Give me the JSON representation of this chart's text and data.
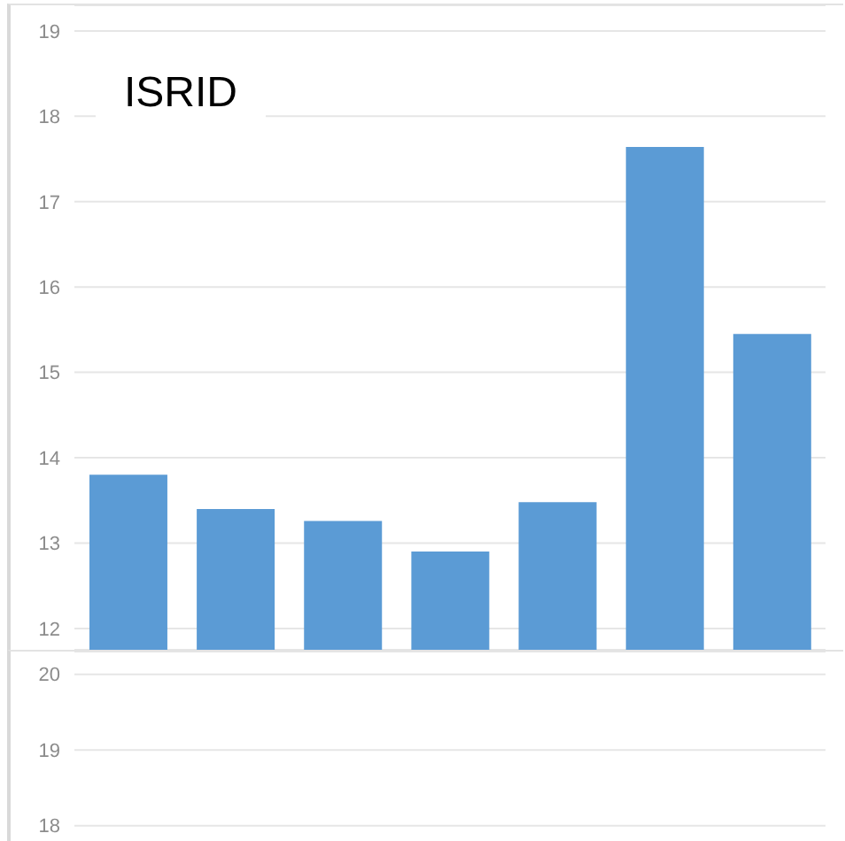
{
  "chart_data": [
    {
      "type": "bar",
      "title": "ISRID",
      "categories": [
        null,
        null,
        null,
        null,
        null,
        null,
        null
      ],
      "values": [
        13.8,
        13.4,
        13.26,
        12.9,
        13.48,
        17.64,
        15.45
      ],
      "color": "#5b9bd5",
      "ylim": [
        11.75,
        19.3
      ],
      "yticks": [
        12,
        13,
        14,
        15,
        16,
        17,
        18,
        19
      ],
      "grid": "y",
      "tick_labels": "y"
    },
    {
      "type": "bar",
      "categories": [
        null,
        null,
        null,
        null,
        null,
        null,
        null
      ],
      "values": [
        null,
        null,
        null,
        null,
        null,
        null,
        null
      ],
      "color": "#5b9bd5",
      "ylim": [
        17.75,
        20.3
      ],
      "yticks": [
        18,
        19,
        20
      ],
      "grid": "y",
      "tick_labels": "y"
    }
  ]
}
